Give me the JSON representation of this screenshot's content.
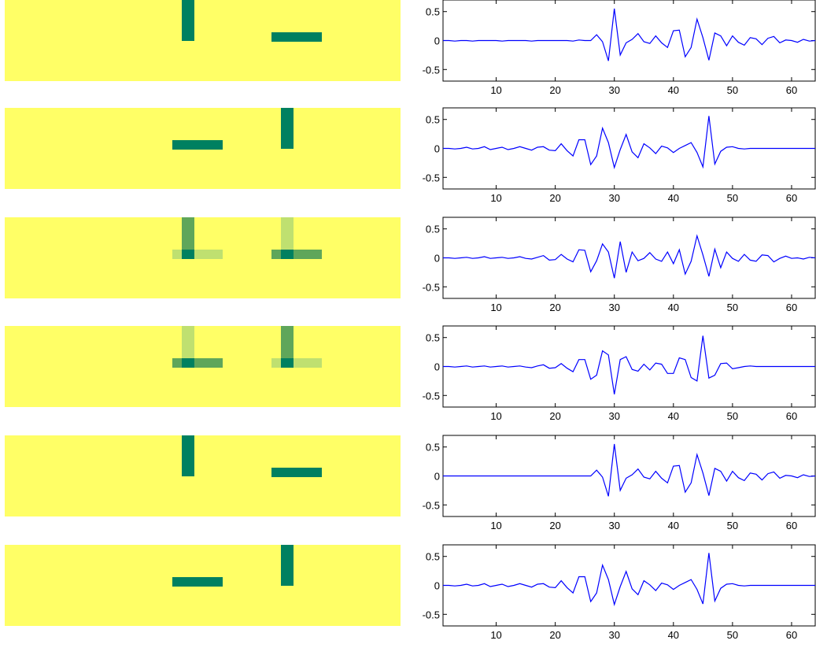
{
  "figure": {
    "layout": "6 rows x 2 columns; left: binary image patterns, right: line plots",
    "colors": {
      "background_panel": "#ffff66",
      "bar_dark": "#008060",
      "bar_mid": "#5fa65a",
      "bar_light": "#bfe070",
      "line": "#0000ff",
      "axes": "#000000"
    }
  },
  "chart_data": [
    {
      "type": "heatmap",
      "row": 1,
      "bars": [
        {
          "orientation": "vertical",
          "position": "left",
          "shade": "dark"
        },
        {
          "orientation": "horizontal",
          "position": "right",
          "shade": "dark"
        }
      ]
    },
    {
      "type": "line",
      "row": 1,
      "xlim": [
        1,
        64
      ],
      "ylim": [
        -0.7,
        0.7
      ],
      "xticks": [
        "10",
        "20",
        "30",
        "40",
        "50",
        "60"
      ],
      "yticks": [
        "0.5",
        "0",
        "-0.5"
      ],
      "x": [
        1,
        2,
        3,
        4,
        5,
        6,
        7,
        8,
        9,
        10,
        11,
        12,
        13,
        14,
        15,
        16,
        17,
        18,
        19,
        20,
        21,
        22,
        23,
        24,
        25,
        26,
        27,
        28,
        29,
        30,
        31,
        32,
        33,
        34,
        35,
        36,
        37,
        38,
        39,
        40,
        41,
        42,
        43,
        44,
        45,
        46,
        47,
        48,
        49,
        50,
        51,
        52,
        53,
        54,
        55,
        56,
        57,
        58,
        59,
        60,
        61,
        62,
        63,
        64
      ],
      "y": [
        0,
        0,
        -0.01,
        0,
        0,
        -0.01,
        0,
        0,
        0,
        0,
        -0.01,
        0,
        0,
        0,
        0,
        -0.01,
        0,
        0,
        0,
        0,
        0,
        0,
        -0.01,
        0.01,
        0,
        0,
        0.1,
        -0.02,
        -0.35,
        0.55,
        -0.25,
        -0.04,
        0.02,
        0.12,
        -0.02,
        -0.05,
        0.08,
        -0.04,
        -0.12,
        0.17,
        0.18,
        -0.28,
        -0.12,
        0.37,
        0.05,
        -0.34,
        0.13,
        0.08,
        -0.09,
        0.08,
        -0.03,
        -0.08,
        0.05,
        0.03,
        -0.07,
        0.04,
        0.07,
        -0.04,
        0.01,
        0,
        -0.03,
        0.02,
        -0.01,
        0
      ]
    },
    {
      "type": "heatmap",
      "row": 2,
      "bars": [
        {
          "orientation": "horizontal",
          "position": "left",
          "shade": "dark"
        },
        {
          "orientation": "vertical",
          "position": "right",
          "shade": "dark"
        }
      ]
    },
    {
      "type": "line",
      "row": 2,
      "xlim": [
        1,
        64
      ],
      "ylim": [
        -0.7,
        0.7
      ],
      "xticks": [
        "10",
        "20",
        "30",
        "40",
        "50",
        "60"
      ],
      "yticks": [
        "0.5",
        "0",
        "-0.5"
      ],
      "x": [
        1,
        2,
        3,
        4,
        5,
        6,
        7,
        8,
        9,
        10,
        11,
        12,
        13,
        14,
        15,
        16,
        17,
        18,
        19,
        20,
        21,
        22,
        23,
        24,
        25,
        26,
        27,
        28,
        29,
        30,
        31,
        32,
        33,
        34,
        35,
        36,
        37,
        38,
        39,
        40,
        41,
        42,
        43,
        44,
        45,
        46,
        47,
        48,
        49,
        50,
        51,
        52,
        53,
        54,
        55,
        56,
        57,
        58,
        59,
        60,
        61,
        62,
        63,
        64
      ],
      "y": [
        0,
        0,
        -0.01,
        0,
        0.02,
        -0.01,
        0,
        0.03,
        -0.02,
        0,
        0.02,
        -0.02,
        0,
        0.03,
        0,
        -0.03,
        0.02,
        0.03,
        -0.03,
        -0.04,
        0.08,
        -0.04,
        -0.13,
        0.15,
        0.15,
        -0.28,
        -0.13,
        0.35,
        0.1,
        -0.33,
        -0.02,
        0.24,
        -0.06,
        -0.16,
        0.08,
        0.01,
        -0.09,
        0.04,
        0.01,
        -0.07,
        0,
        0.05,
        0.1,
        -0.07,
        -0.32,
        0.56,
        -0.27,
        -0.05,
        0.02,
        0.03,
        0,
        -0.01,
        0,
        0,
        0,
        0,
        0,
        0,
        0,
        0,
        0,
        0,
        0,
        0
      ]
    },
    {
      "type": "heatmap",
      "row": 3,
      "bars": [
        {
          "orientation": "vertical",
          "position": "left",
          "shade": "mid"
        },
        {
          "orientation": "horizontal",
          "position": "left",
          "shade": "light"
        },
        {
          "orientation": "vertical",
          "position": "right",
          "shade": "light"
        },
        {
          "orientation": "horizontal",
          "position": "right",
          "shade": "mid"
        }
      ]
    },
    {
      "type": "line",
      "row": 3,
      "xlim": [
        1,
        64
      ],
      "ylim": [
        -0.7,
        0.7
      ],
      "xticks": [
        "10",
        "20",
        "30",
        "40",
        "50",
        "60"
      ],
      "yticks": [
        "0.5",
        "0",
        "-0.5"
      ],
      "x": [
        1,
        2,
        3,
        4,
        5,
        6,
        7,
        8,
        9,
        10,
        11,
        12,
        13,
        14,
        15,
        16,
        17,
        18,
        19,
        20,
        21,
        22,
        23,
        24,
        25,
        26,
        27,
        28,
        29,
        30,
        31,
        32,
        33,
        34,
        35,
        36,
        37,
        38,
        39,
        40,
        41,
        42,
        43,
        44,
        45,
        46,
        47,
        48,
        49,
        50,
        51,
        52,
        53,
        54,
        55,
        56,
        57,
        58,
        59,
        60,
        61,
        62,
        63,
        64
      ],
      "y": [
        0,
        0,
        -0.01,
        0,
        0.01,
        -0.01,
        0,
        0.02,
        -0.01,
        0,
        0.01,
        -0.01,
        0,
        0.02,
        -0.01,
        -0.02,
        0.01,
        0.04,
        -0.04,
        -0.03,
        0.06,
        -0.02,
        -0.07,
        0.14,
        0.13,
        -0.24,
        -0.05,
        0.24,
        0.1,
        -0.35,
        0.28,
        -0.25,
        0.1,
        -0.05,
        -0.01,
        0.09,
        -0.02,
        -0.06,
        0.1,
        -0.1,
        0.14,
        -0.28,
        -0.06,
        0.38,
        0.05,
        -0.32,
        0.15,
        -0.17,
        0.1,
        -0.01,
        -0.06,
        0.06,
        -0.04,
        -0.06,
        0.05,
        0.04,
        -0.07,
        -0.01,
        0.03,
        -0.01,
        0,
        -0.02,
        0.01,
        0
      ]
    },
    {
      "type": "heatmap",
      "row": 4,
      "bars": [
        {
          "orientation": "vertical",
          "position": "left",
          "shade": "light"
        },
        {
          "orientation": "horizontal",
          "position": "left",
          "shade": "mid"
        },
        {
          "orientation": "vertical",
          "position": "right",
          "shade": "mid"
        },
        {
          "orientation": "horizontal",
          "position": "right",
          "shade": "light"
        }
      ]
    },
    {
      "type": "line",
      "row": 4,
      "xlim": [
        1,
        64
      ],
      "ylim": [
        -0.7,
        0.7
      ],
      "xticks": [
        "10",
        "20",
        "30",
        "40",
        "50",
        "60"
      ],
      "yticks": [
        "0.5",
        "0",
        "-0.5"
      ],
      "x": [
        1,
        2,
        3,
        4,
        5,
        6,
        7,
        8,
        9,
        10,
        11,
        12,
        13,
        14,
        15,
        16,
        17,
        18,
        19,
        20,
        21,
        22,
        23,
        24,
        25,
        26,
        27,
        28,
        29,
        30,
        31,
        32,
        33,
        34,
        35,
        36,
        37,
        38,
        39,
        40,
        41,
        42,
        43,
        44,
        45,
        46,
        47,
        48,
        49,
        50,
        51,
        52,
        53,
        54,
        55,
        56,
        57,
        58,
        59,
        60,
        61,
        62,
        63,
        64
      ],
      "y": [
        0,
        0,
        -0.01,
        0,
        0.01,
        -0.01,
        0,
        0.01,
        -0.01,
        0,
        0.01,
        -0.01,
        0,
        0.01,
        -0.01,
        -0.02,
        0.01,
        0.03,
        -0.03,
        -0.02,
        0.05,
        -0.03,
        -0.09,
        0.12,
        0.12,
        -0.22,
        -0.15,
        0.27,
        0.2,
        -0.48,
        0.12,
        0.17,
        -0.05,
        -0.08,
        0.04,
        -0.06,
        0.06,
        0.04,
        -0.12,
        -0.12,
        0.15,
        0.12,
        -0.19,
        -0.25,
        0.53,
        -0.2,
        -0.15,
        0.05,
        0.06,
        -0.04,
        -0.02,
        0,
        0.01,
        0,
        0,
        0,
        0,
        0,
        0,
        0,
        0,
        0,
        0,
        0
      ]
    },
    {
      "type": "heatmap",
      "row": 5,
      "bars": [
        {
          "orientation": "vertical",
          "position": "left",
          "shade": "dark"
        },
        {
          "orientation": "horizontal",
          "position": "right",
          "shade": "dark"
        }
      ]
    },
    {
      "type": "line",
      "row": 5,
      "xlim": [
        1,
        64
      ],
      "ylim": [
        -0.7,
        0.7
      ],
      "xticks": [
        "10",
        "20",
        "30",
        "40",
        "50",
        "60"
      ],
      "yticks": [
        "0.5",
        "0",
        "-0.5"
      ],
      "x": [
        1,
        2,
        3,
        4,
        5,
        6,
        7,
        8,
        9,
        10,
        11,
        12,
        13,
        14,
        15,
        16,
        17,
        18,
        19,
        20,
        21,
        22,
        23,
        24,
        25,
        26,
        27,
        28,
        29,
        30,
        31,
        32,
        33,
        34,
        35,
        36,
        37,
        38,
        39,
        40,
        41,
        42,
        43,
        44,
        45,
        46,
        47,
        48,
        49,
        50,
        51,
        52,
        53,
        54,
        55,
        56,
        57,
        58,
        59,
        60,
        61,
        62,
        63,
        64
      ],
      "y": [
        0,
        0,
        0,
        0,
        0,
        0,
        0,
        0,
        0,
        0,
        0,
        0,
        0,
        0,
        0,
        0,
        0,
        0,
        0,
        0,
        0,
        0,
        0,
        0,
        0,
        0,
        0.1,
        -0.02,
        -0.35,
        0.55,
        -0.25,
        -0.04,
        0.02,
        0.12,
        -0.02,
        -0.05,
        0.08,
        -0.04,
        -0.12,
        0.17,
        0.18,
        -0.28,
        -0.12,
        0.37,
        0.05,
        -0.34,
        0.13,
        0.08,
        -0.09,
        0.08,
        -0.03,
        -0.08,
        0.05,
        0.03,
        -0.07,
        0.04,
        0.07,
        -0.04,
        0.01,
        0,
        -0.03,
        0.02,
        -0.01,
        0
      ]
    },
    {
      "type": "heatmap",
      "row": 6,
      "bars": [
        {
          "orientation": "horizontal",
          "position": "left",
          "shade": "dark"
        },
        {
          "orientation": "vertical",
          "position": "right",
          "shade": "dark"
        }
      ]
    },
    {
      "type": "line",
      "row": 6,
      "xlim": [
        1,
        64
      ],
      "ylim": [
        -0.7,
        0.7
      ],
      "xticks": [
        "10",
        "20",
        "30",
        "40",
        "50",
        "60"
      ],
      "yticks": [
        "0.5",
        "0",
        "-0.5"
      ],
      "x": [
        1,
        2,
        3,
        4,
        5,
        6,
        7,
        8,
        9,
        10,
        11,
        12,
        13,
        14,
        15,
        16,
        17,
        18,
        19,
        20,
        21,
        22,
        23,
        24,
        25,
        26,
        27,
        28,
        29,
        30,
        31,
        32,
        33,
        34,
        35,
        36,
        37,
        38,
        39,
        40,
        41,
        42,
        43,
        44,
        45,
        46,
        47,
        48,
        49,
        50,
        51,
        52,
        53,
        54,
        55,
        56,
        57,
        58,
        59,
        60,
        61,
        62,
        63,
        64
      ],
      "y": [
        0,
        0,
        -0.01,
        0,
        0.02,
        -0.01,
        0,
        0.03,
        -0.02,
        0,
        0.02,
        -0.02,
        0,
        0.03,
        0,
        -0.03,
        0.02,
        0.03,
        -0.03,
        -0.04,
        0.08,
        -0.04,
        -0.13,
        0.15,
        0.15,
        -0.28,
        -0.13,
        0.35,
        0.1,
        -0.33,
        -0.02,
        0.24,
        -0.06,
        -0.16,
        0.08,
        0.01,
        -0.09,
        0.04,
        0.01,
        -0.07,
        0,
        0.05,
        0.1,
        -0.07,
        -0.32,
        0.56,
        -0.27,
        -0.05,
        0.02,
        0.03,
        0,
        -0.01,
        0,
        0,
        0,
        0,
        0,
        0,
        0,
        0,
        0,
        0,
        0,
        0
      ]
    }
  ]
}
